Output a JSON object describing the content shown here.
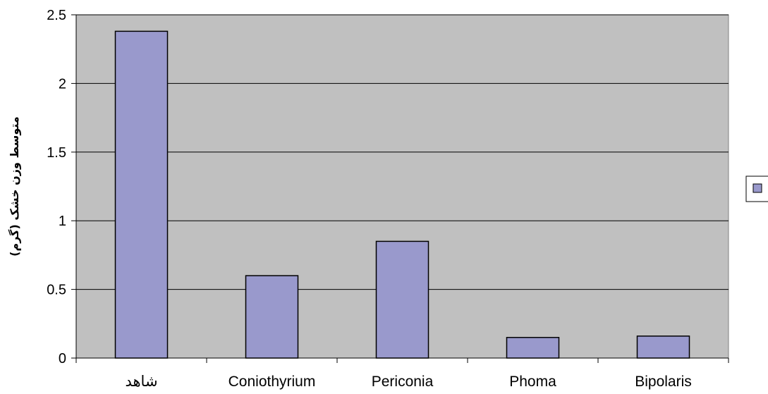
{
  "chart_data": {
    "type": "bar",
    "categories": [
      "شاهد",
      "Coniothyrium",
      "Periconia",
      "Phoma",
      "Bipolaris"
    ],
    "series": [
      {
        "name": "",
        "values": [
          2.38,
          0.6,
          0.85,
          0.15,
          0.16
        ]
      }
    ],
    "title": "",
    "xlabel": "",
    "ylabel": "متوسط وزن خشک (گرم)",
    "ylim": [
      0,
      2.5
    ],
    "yticks": [
      "0",
      "0.5",
      "1",
      "1.5",
      "2",
      "2.5"
    ],
    "grid": true,
    "legend_position": "right",
    "colors": {
      "plot_background": "#c0c0c0",
      "bar_fill": "#9999cc",
      "bar_stroke": "#000000",
      "gridline": "#000000"
    }
  }
}
